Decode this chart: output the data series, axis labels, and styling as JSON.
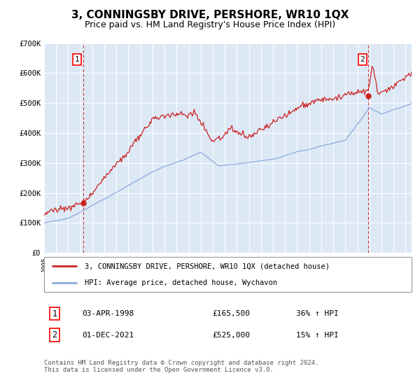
{
  "title": "3, CONNINGSBY DRIVE, PERSHORE, WR10 1QX",
  "subtitle": "Price paid vs. HM Land Registry's House Price Index (HPI)",
  "legend_line1": "3, CONNINGSBY DRIVE, PERSHORE, WR10 1QX (detached house)",
  "legend_line2": "HPI: Average price, detached house, Wychavon",
  "footer": "Contains HM Land Registry data © Crown copyright and database right 2024.\nThis data is licensed under the Open Government Licence v3.0.",
  "sale1_label": "1",
  "sale1_date": "03-APR-1998",
  "sale1_price": "£165,500",
  "sale1_hpi": "36% ↑ HPI",
  "sale2_label": "2",
  "sale2_date": "01-DEC-2021",
  "sale2_price": "£525,000",
  "sale2_hpi": "15% ↑ HPI",
  "sale1_x": 1998.25,
  "sale1_y": 165500,
  "sale2_x": 2021.917,
  "sale2_y": 525000,
  "ylim": [
    0,
    700000
  ],
  "yticks": [
    0,
    100000,
    200000,
    300000,
    400000,
    500000,
    600000,
    700000
  ],
  "ytick_labels": [
    "£0",
    "£100K",
    "£200K",
    "£300K",
    "£400K",
    "£500K",
    "£600K",
    "£700K"
  ],
  "bg_color": "#dde8f5",
  "red_color": "#cc2222",
  "blue_color": "#88aadd",
  "grid_color": "#ffffff",
  "title_fontsize": 11,
  "subtitle_fontsize": 9,
  "xmin": 1995,
  "xmax": 2025.5
}
